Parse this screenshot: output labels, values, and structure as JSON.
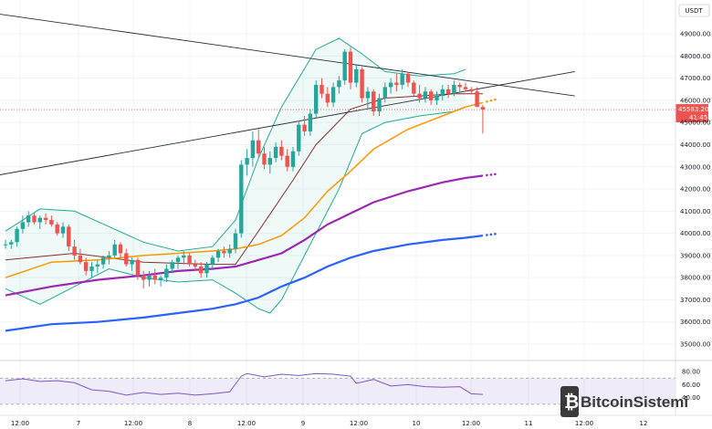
{
  "chart_data": {
    "type": "candlestick",
    "pair_currency": "USDT",
    "y_axis": {
      "min": 34300,
      "max": 50200,
      "ticks": [
        "49000.00",
        "48000.00",
        "47000.00",
        "46000.00",
        "45000.00",
        "44000.00",
        "43000.00",
        "42000.00",
        "41000.00",
        "40000.00",
        "39000.00",
        "38000.00",
        "37000.00",
        "36000.00",
        "35000.00"
      ]
    },
    "x_axis": {
      "ticks": [
        "12:00",
        "7",
        "12:00",
        "8",
        "12:00",
        "9",
        "12:00",
        "10",
        "12:00",
        "11",
        "12:00",
        "12"
      ]
    },
    "last_price": {
      "value": "45583.20",
      "countdown": "41:45",
      "color": "#ef5350"
    },
    "candles": [
      [
        39500,
        39700,
        39300,
        39500
      ],
      [
        39500,
        39700,
        39300,
        39600
      ],
      [
        39600,
        40300,
        39400,
        40200
      ],
      [
        40200,
        40800,
        40000,
        40500
      ],
      [
        40500,
        41000,
        40300,
        40800
      ],
      [
        40800,
        40900,
        40400,
        40500
      ],
      [
        40500,
        40800,
        40200,
        40700
      ],
      [
        40700,
        40900,
        40400,
        40600
      ],
      [
        40600,
        40800,
        40300,
        40400
      ],
      [
        40400,
        40500,
        39900,
        40000
      ],
      [
        40000,
        40500,
        39800,
        40300
      ],
      [
        40300,
        40400,
        39200,
        39400
      ],
      [
        39400,
        39700,
        38800,
        39000
      ],
      [
        39000,
        39300,
        38600,
        38700
      ],
      [
        38700,
        38900,
        38100,
        38300
      ],
      [
        38300,
        38700,
        38000,
        38500
      ],
      [
        38500,
        38800,
        38200,
        38600
      ],
      [
        38600,
        39000,
        38400,
        38900
      ],
      [
        38900,
        39200,
        38600,
        39000
      ],
      [
        39000,
        39700,
        38900,
        39500
      ],
      [
        39500,
        39600,
        38900,
        39100
      ],
      [
        39100,
        39300,
        38500,
        38600
      ],
      [
        38600,
        38900,
        38300,
        38800
      ],
      [
        38800,
        38900,
        37900,
        38100
      ],
      [
        38100,
        38300,
        37500,
        37900
      ],
      [
        37900,
        38300,
        37600,
        38100
      ],
      [
        38100,
        38400,
        37700,
        37900
      ],
      [
        37900,
        38100,
        37600,
        38000
      ],
      [
        38000,
        38600,
        37800,
        38400
      ],
      [
        38400,
        38800,
        38200,
        38700
      ],
      [
        38700,
        39000,
        38400,
        38900
      ],
      [
        38900,
        39200,
        38600,
        39000
      ],
      [
        39000,
        39100,
        38500,
        38600
      ],
      [
        38600,
        38800,
        38300,
        38500
      ],
      [
        38500,
        38700,
        38000,
        38200
      ],
      [
        38200,
        38700,
        38000,
        38600
      ],
      [
        38600,
        39000,
        38400,
        38900
      ],
      [
        38900,
        39300,
        38700,
        39200
      ],
      [
        39200,
        39400,
        38900,
        39100
      ],
      [
        39100,
        39500,
        38900,
        39300
      ],
      [
        39300,
        40200,
        39100,
        40000
      ],
      [
        40000,
        43300,
        39800,
        43100
      ],
      [
        43100,
        43800,
        42600,
        43400
      ],
      [
        43400,
        44600,
        43000,
        44200
      ],
      [
        44200,
        44700,
        43400,
        43600
      ],
      [
        43600,
        43900,
        42900,
        43100
      ],
      [
        43100,
        43700,
        42700,
        43400
      ],
      [
        43400,
        44100,
        43200,
        43900
      ],
      [
        43900,
        44200,
        43300,
        43500
      ],
      [
        43500,
        43800,
        42800,
        43000
      ],
      [
        43000,
        43900,
        42800,
        43700
      ],
      [
        43700,
        45100,
        43500,
        44900
      ],
      [
        44900,
        45300,
        44400,
        44600
      ],
      [
        44600,
        45600,
        44400,
        45400
      ],
      [
        45400,
        46900,
        45200,
        46700
      ],
      [
        46700,
        47000,
        46100,
        46300
      ],
      [
        46300,
        46600,
        45700,
        45900
      ],
      [
        45900,
        46800,
        45700,
        46600
      ],
      [
        46600,
        47100,
        46300,
        46900
      ],
      [
        46900,
        48300,
        46700,
        48200
      ],
      [
        48200,
        48400,
        46500,
        46800
      ],
      [
        46800,
        47600,
        46600,
        47400
      ],
      [
        47400,
        47500,
        45900,
        46100
      ],
      [
        46100,
        46600,
        45600,
        46400
      ],
      [
        46400,
        46500,
        45300,
        45500
      ],
      [
        45500,
        46300,
        45300,
        46100
      ],
      [
        46100,
        46800,
        45900,
        46600
      ],
      [
        46600,
        47000,
        46300,
        46800
      ],
      [
        46800,
        47200,
        46400,
        46700
      ],
      [
        46700,
        47400,
        46500,
        47200
      ],
      [
        47200,
        47300,
        46600,
        46800
      ],
      [
        46800,
        46900,
        46200,
        46300
      ],
      [
        46300,
        46700,
        45900,
        46100
      ],
      [
        46100,
        46600,
        45900,
        46400
      ],
      [
        46400,
        46500,
        45800,
        46000
      ],
      [
        46000,
        46400,
        45800,
        46200
      ],
      [
        46200,
        46700,
        46000,
        46500
      ],
      [
        46500,
        46700,
        46100,
        46300
      ],
      [
        46300,
        46900,
        46200,
        46700
      ],
      [
        46700,
        46800,
        46300,
        46600
      ],
      [
        46600,
        46800,
        46400,
        46500
      ],
      [
        46500,
        46600,
        46300,
        46400
      ],
      [
        46400,
        46600,
        45800,
        45700
      ],
      [
        45700,
        45800,
        44500,
        45583
      ]
    ],
    "ma20": [
      [
        0,
        38800
      ],
      [
        12,
        39100
      ],
      [
        24,
        38700
      ],
      [
        36,
        38600
      ],
      [
        40,
        38600
      ],
      [
        44,
        40100
      ],
      [
        50,
        42400
      ],
      [
        54,
        44000
      ],
      [
        60,
        45600
      ],
      [
        66,
        46100
      ],
      [
        72,
        46200
      ],
      [
        78,
        46300
      ],
      [
        83,
        46300
      ]
    ],
    "bb_upper": [
      [
        0,
        40100
      ],
      [
        6,
        41100
      ],
      [
        12,
        41000
      ],
      [
        18,
        40300
      ],
      [
        24,
        39600
      ],
      [
        30,
        39200
      ],
      [
        36,
        39400
      ],
      [
        40,
        40600
      ],
      [
        44,
        43400
      ],
      [
        48,
        45700
      ],
      [
        54,
        48300
      ],
      [
        58,
        48800
      ],
      [
        62,
        48100
      ],
      [
        66,
        47300
      ],
      [
        72,
        47100
      ],
      [
        78,
        47200
      ],
      [
        80,
        47400
      ]
    ],
    "bb_lower": [
      [
        0,
        37500
      ],
      [
        6,
        36800
      ],
      [
        12,
        37600
      ],
      [
        18,
        38400
      ],
      [
        24,
        38000
      ],
      [
        30,
        37800
      ],
      [
        36,
        37900
      ],
      [
        40,
        37300
      ],
      [
        44,
        36600
      ],
      [
        46,
        36400
      ],
      [
        48,
        37000
      ],
      [
        52,
        39000
      ],
      [
        58,
        42000
      ],
      [
        62,
        44500
      ],
      [
        66,
        45000
      ],
      [
        72,
        45300
      ],
      [
        78,
        45500
      ],
      [
        80,
        45700
      ]
    ],
    "ema50": [
      [
        0,
        38000
      ],
      [
        8,
        38700
      ],
      [
        16,
        38800
      ],
      [
        24,
        39000
      ],
      [
        30,
        39100
      ],
      [
        36,
        39200
      ],
      [
        40,
        39300
      ],
      [
        44,
        39500
      ],
      [
        48,
        39900
      ],
      [
        52,
        40700
      ],
      [
        56,
        41900
      ],
      [
        60,
        42800
      ],
      [
        64,
        43800
      ],
      [
        70,
        44700
      ],
      [
        76,
        45300
      ],
      [
        80,
        45700
      ],
      [
        83,
        45900
      ]
    ],
    "ema100": [
      [
        0,
        37200
      ],
      [
        8,
        37600
      ],
      [
        16,
        37900
      ],
      [
        24,
        38100
      ],
      [
        30,
        38300
      ],
      [
        36,
        38400
      ],
      [
        40,
        38500
      ],
      [
        44,
        38800
      ],
      [
        48,
        39100
      ],
      [
        52,
        39700
      ],
      [
        56,
        40400
      ],
      [
        60,
        40900
      ],
      [
        64,
        41400
      ],
      [
        70,
        41900
      ],
      [
        76,
        42300
      ],
      [
        80,
        42500
      ],
      [
        83,
        42600
      ]
    ],
    "ema200": [
      [
        0,
        35600
      ],
      [
        8,
        35900
      ],
      [
        16,
        36000
      ],
      [
        24,
        36200
      ],
      [
        30,
        36400
      ],
      [
        36,
        36600
      ],
      [
        40,
        36800
      ],
      [
        44,
        37100
      ],
      [
        48,
        37600
      ],
      [
        52,
        38000
      ],
      [
        56,
        38500
      ],
      [
        60,
        38900
      ],
      [
        64,
        39200
      ],
      [
        70,
        39500
      ],
      [
        76,
        39700
      ],
      [
        80,
        39800
      ],
      [
        83,
        39900
      ]
    ],
    "trendline_upper": [
      [
        -4,
        50000
      ],
      [
        99,
        46200
      ]
    ],
    "trendline_lower": [
      [
        -4,
        42500
      ],
      [
        99,
        47300
      ]
    ],
    "rsi": {
      "levels": [
        "80.00",
        "60.00",
        "40.00"
      ],
      "overbought": 70,
      "oversold": 30,
      "values": [
        [
          0,
          66
        ],
        [
          3,
          69
        ],
        [
          6,
          65
        ],
        [
          9,
          66
        ],
        [
          12,
          63
        ],
        [
          15,
          52
        ],
        [
          18,
          50
        ],
        [
          21,
          44
        ],
        [
          24,
          48
        ],
        [
          27,
          45
        ],
        [
          30,
          47
        ],
        [
          33,
          44
        ],
        [
          36,
          46
        ],
        [
          39,
          49
        ],
        [
          41,
          73
        ],
        [
          42,
          77
        ],
        [
          45,
          72
        ],
        [
          48,
          76
        ],
        [
          51,
          74
        ],
        [
          54,
          77
        ],
        [
          57,
          76
        ],
        [
          60,
          73
        ],
        [
          61,
          62
        ],
        [
          64,
          68
        ],
        [
          67,
          58
        ],
        [
          70,
          60
        ],
        [
          73,
          57
        ],
        [
          76,
          56
        ],
        [
          79,
          57
        ],
        [
          81,
          46
        ],
        [
          83,
          45
        ]
      ]
    },
    "colors": {
      "up": "#26a69a",
      "down": "#ef5350",
      "bands": "#22ab94",
      "ma20": "#8b2d2d",
      "ema50": "#ff9800",
      "ema100": "#9c27b0",
      "ema200": "#2962ff",
      "rsi": "#7e57c2"
    }
  },
  "watermark": {
    "text": "BitcoinSistemi"
  }
}
